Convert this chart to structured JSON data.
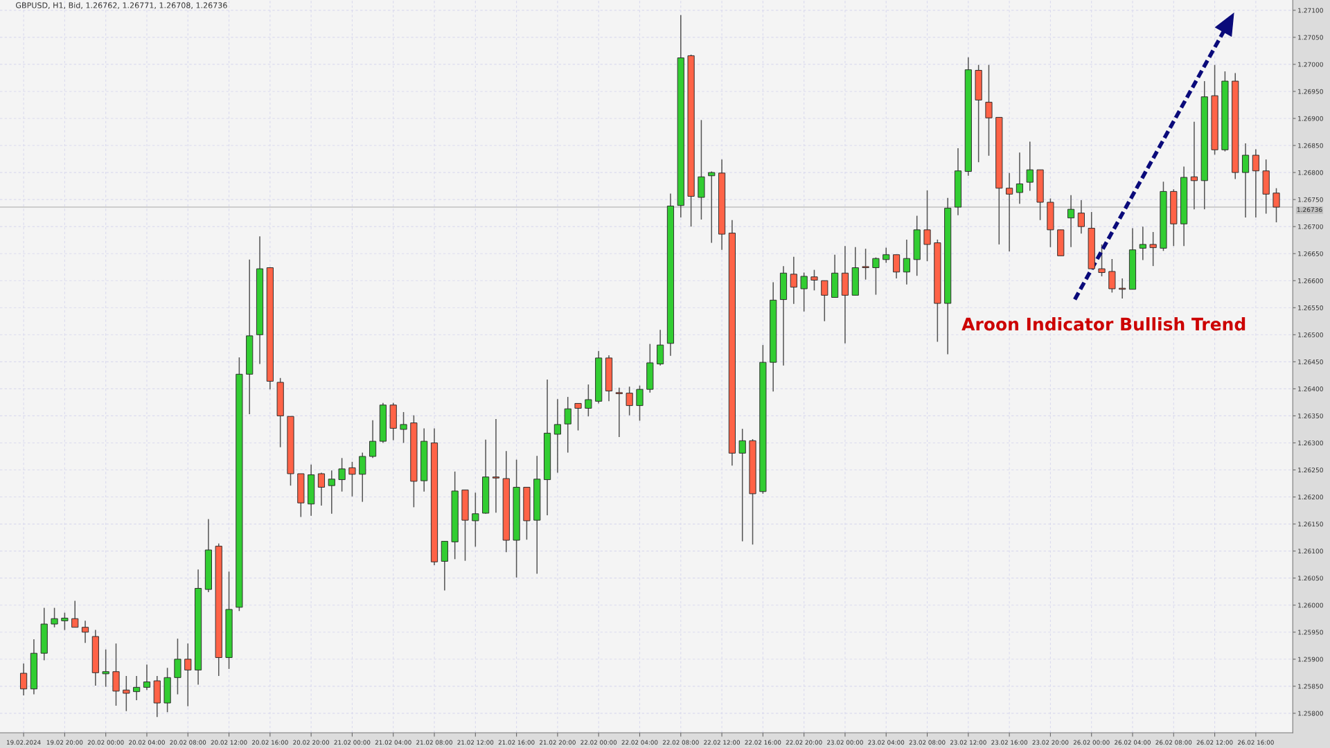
{
  "chart_data": {
    "type": "candlestick",
    "title": "GBPUSD, H1, Bid, 1.26762, 1.26771, 1.26708, 1.26736",
    "categories": [
      "19.02.2024",
      null,
      null,
      null,
      "19.02 20:00",
      null,
      null,
      null,
      "20.02 00:00",
      null,
      null,
      null,
      "20.02 04:00",
      null,
      null,
      null,
      "20.02 08:00",
      null,
      null,
      null,
      "20.02 12:00",
      null,
      null,
      null,
      "20.02 16:00",
      null,
      null,
      null,
      "20.02 20:00",
      null,
      null,
      null,
      "21.02 00:00",
      null,
      null,
      null,
      "21.02 04:00",
      null,
      null,
      null,
      "21.02 08:00",
      null,
      null,
      null,
      "21.02 12:00",
      null,
      null,
      null,
      "21.02 16:00",
      null,
      null,
      null,
      "21.02 20:00",
      null,
      null,
      null,
      "22.02 00:00",
      null,
      null,
      null,
      "22.02 04:00",
      null,
      null,
      null,
      "22.02 08:00",
      null,
      null,
      null,
      "22.02 12:00",
      null,
      null,
      null,
      "22.02 16:00",
      null,
      null,
      null,
      "22.02 20:00",
      null,
      null,
      null,
      "23.02 00:00",
      null,
      null,
      null,
      "23.02 04:00",
      null,
      null,
      null,
      "23.02 08:00",
      null,
      null,
      null,
      "23.02 12:00",
      null,
      null,
      null,
      "23.02 16:00",
      null,
      null,
      null,
      "23.02 20:00",
      null,
      null,
      null,
      "26.02 00:00",
      null,
      null,
      null,
      "26.02 04:00",
      null,
      null,
      null,
      "26.02 08:00",
      null,
      null,
      null,
      "26.02 12:00",
      null,
      null,
      null,
      "26.02 16:00",
      null,
      null
    ],
    "ohlc": [
      [
        1.25874,
        1.25892,
        1.25833,
        1.25845
      ],
      [
        1.25845,
        1.25937,
        1.25835,
        1.25911
      ],
      [
        1.25911,
        1.25995,
        1.25898,
        1.25965
      ],
      [
        1.25965,
        1.25995,
        1.25959,
        1.25975
      ],
      [
        1.25971,
        1.25986,
        1.25954,
        1.25976
      ],
      [
        1.25975,
        1.26008,
        1.25959,
        1.25959
      ],
      [
        1.25959,
        1.25971,
        1.2593,
        1.2595
      ],
      [
        1.25942,
        1.25954,
        1.25851,
        1.25875
      ],
      [
        1.25873,
        1.25918,
        1.25849,
        1.25877
      ],
      [
        1.25877,
        1.25929,
        1.25814,
        1.25841
      ],
      [
        1.25843,
        1.25869,
        1.25804,
        1.25837
      ],
      [
        1.2584,
        1.25869,
        1.25824,
        1.25848
      ],
      [
        1.25848,
        1.2589,
        1.25843,
        1.25858
      ],
      [
        1.2586,
        1.25869,
        1.25793,
        1.25819
      ],
      [
        1.25819,
        1.25884,
        1.25802,
        1.25866
      ],
      [
        1.25866,
        1.25938,
        1.25835,
        1.259
      ],
      [
        1.259,
        1.25929,
        1.25813,
        1.2588
      ],
      [
        1.2588,
        1.26066,
        1.25853,
        1.26031
      ],
      [
        1.26029,
        1.26159,
        1.26024,
        1.26102
      ],
      [
        1.26109,
        1.26114,
        1.25869,
        1.25903
      ],
      [
        1.25903,
        1.26062,
        1.25882,
        1.25992
      ],
      [
        1.25996,
        1.26458,
        1.25989,
        1.26427
      ],
      [
        1.26427,
        1.26639,
        1.26353,
        1.26498
      ],
      [
        1.265,
        1.26682,
        1.26446,
        1.26622
      ],
      [
        1.26624,
        1.26625,
        1.26399,
        1.26414
      ],
      [
        1.26412,
        1.2642,
        1.26292,
        1.2635
      ],
      [
        1.26349,
        1.26349,
        1.26221,
        1.26243
      ],
      [
        1.26243,
        1.26243,
        1.26163,
        1.26189
      ],
      [
        1.26187,
        1.2626,
        1.26165,
        1.26241
      ],
      [
        1.26243,
        1.26245,
        1.26184,
        1.26218
      ],
      [
        1.26221,
        1.26249,
        1.26169,
        1.26233
      ],
      [
        1.26232,
        1.26272,
        1.2621,
        1.26252
      ],
      [
        1.26254,
        1.26265,
        1.26201,
        1.26242
      ],
      [
        1.26242,
        1.26282,
        1.26191,
        1.26275
      ],
      [
        1.26275,
        1.26342,
        1.26272,
        1.26303
      ],
      [
        1.26303,
        1.26374,
        1.263,
        1.2637
      ],
      [
        1.2637,
        1.26374,
        1.26305,
        1.26327
      ],
      [
        1.26325,
        1.26357,
        1.263,
        1.26334
      ],
      [
        1.26337,
        1.26351,
        1.26181,
        1.26229
      ],
      [
        1.2623,
        1.26327,
        1.2621,
        1.26303
      ],
      [
        1.263,
        1.26327,
        1.26074,
        1.2608
      ],
      [
        1.26081,
        1.26118,
        1.26027,
        1.26118
      ],
      [
        1.26117,
        1.26247,
        1.26085,
        1.26211
      ],
      [
        1.26213,
        1.26213,
        1.26082,
        1.26157
      ],
      [
        1.26156,
        1.26208,
        1.26108,
        1.26169
      ],
      [
        1.2617,
        1.26306,
        1.26169,
        1.26237
      ],
      [
        1.26237,
        1.26344,
        1.26171,
        1.26235
      ],
      [
        1.26234,
        1.26285,
        1.26098,
        1.2612
      ],
      [
        1.2612,
        1.26269,
        1.26051,
        1.26218
      ],
      [
        1.26218,
        1.26218,
        1.26121,
        1.26156
      ],
      [
        1.26157,
        1.26276,
        1.26058,
        1.26233
      ],
      [
        1.26232,
        1.26417,
        1.26166,
        1.26318
      ],
      [
        1.26316,
        1.26381,
        1.26245,
        1.26334
      ],
      [
        1.26335,
        1.26385,
        1.26282,
        1.26363
      ],
      [
        1.26373,
        1.26373,
        1.26323,
        1.26364
      ],
      [
        1.26364,
        1.26408,
        1.26349,
        1.2638
      ],
      [
        1.26377,
        1.2647,
        1.26373,
        1.26457
      ],
      [
        1.26457,
        1.26462,
        1.26377,
        1.26396
      ],
      [
        1.26393,
        1.26402,
        1.26311,
        1.26391
      ],
      [
        1.26392,
        1.26404,
        1.26351,
        1.26369
      ],
      [
        1.26369,
        1.26406,
        1.26341,
        1.26399
      ],
      [
        1.26399,
        1.26483,
        1.26393,
        1.26448
      ],
      [
        1.26446,
        1.26509,
        1.26443,
        1.26481
      ],
      [
        1.26484,
        1.26761,
        1.26461,
        1.26738
      ],
      [
        1.26739,
        1.27091,
        1.26717,
        1.27012
      ],
      [
        1.27016,
        1.27018,
        1.267,
        1.26756
      ],
      [
        1.26754,
        1.26897,
        1.26713,
        1.26792
      ],
      [
        1.26794,
        1.26802,
        1.2667,
        1.268
      ],
      [
        1.26799,
        1.26824,
        1.26657,
        1.26686
      ],
      [
        1.26688,
        1.26712,
        1.26258,
        1.26281
      ],
      [
        1.26281,
        1.26326,
        1.26118,
        1.26304
      ],
      [
        1.26304,
        1.26307,
        1.26112,
        1.26206
      ],
      [
        1.2621,
        1.26481,
        1.26206,
        1.26449
      ],
      [
        1.26449,
        1.26597,
        1.26395,
        1.26564
      ],
      [
        1.26565,
        1.26627,
        1.26443,
        1.26614
      ],
      [
        1.26612,
        1.26644,
        1.26557,
        1.26588
      ],
      [
        1.26585,
        1.26615,
        1.26543,
        1.26608
      ],
      [
        1.26607,
        1.2662,
        1.26582,
        1.26601
      ],
      [
        1.266,
        1.266,
        1.26525,
        1.26573
      ],
      [
        1.26569,
        1.26648,
        1.26569,
        1.26614
      ],
      [
        1.26614,
        1.26664,
        1.26484,
        1.26573
      ],
      [
        1.26573,
        1.26662,
        1.26573,
        1.26624
      ],
      [
        1.26626,
        1.26659,
        1.26602,
        1.26624
      ],
      [
        1.26624,
        1.26643,
        1.26574,
        1.26641
      ],
      [
        1.26639,
        1.26661,
        1.26633,
        1.26648
      ],
      [
        1.26648,
        1.26648,
        1.26604,
        1.26616
      ],
      [
        1.26616,
        1.26676,
        1.26593,
        1.26641
      ],
      [
        1.26639,
        1.2672,
        1.26609,
        1.26694
      ],
      [
        1.26694,
        1.26767,
        1.26636,
        1.26667
      ],
      [
        1.2667,
        1.26676,
        1.26487,
        1.26558
      ],
      [
        1.26558,
        1.26753,
        1.26464,
        1.26734
      ],
      [
        1.26736,
        1.26845,
        1.26721,
        1.26803
      ],
      [
        1.26802,
        1.27013,
        1.26794,
        1.2699
      ],
      [
        1.26989,
        1.26999,
        1.26819,
        1.26934
      ],
      [
        1.2693,
        1.26999,
        1.26831,
        1.26901
      ],
      [
        1.26902,
        1.26902,
        1.26667,
        1.26771
      ],
      [
        1.26771,
        1.26799,
        1.26654,
        1.2676
      ],
      [
        1.26763,
        1.26837,
        1.26742,
        1.26779
      ],
      [
        1.26782,
        1.26857,
        1.26766,
        1.26805
      ],
      [
        1.26805,
        1.26805,
        1.26712,
        1.26745
      ],
      [
        1.26745,
        1.26752,
        1.26662,
        1.26694
      ],
      [
        1.26694,
        1.26694,
        1.26646,
        1.26646
      ],
      [
        1.26716,
        1.26758,
        1.26662,
        1.26732
      ],
      [
        1.26725,
        1.26749,
        1.26687,
        1.267
      ],
      [
        1.26697,
        1.26727,
        1.26622,
        1.26622
      ],
      [
        1.26622,
        1.26667,
        1.26608,
        1.26615
      ],
      [
        1.26617,
        1.2664,
        1.26578,
        1.26585
      ],
      [
        1.26586,
        1.26604,
        1.26567,
        1.26584
      ],
      [
        1.26584,
        1.26697,
        1.26584,
        1.26657
      ],
      [
        1.2666,
        1.267,
        1.26638,
        1.26667
      ],
      [
        1.26667,
        1.2669,
        1.26627,
        1.26661
      ],
      [
        1.2666,
        1.26783,
        1.26655,
        1.26765
      ],
      [
        1.26765,
        1.26769,
        1.26664,
        1.26705
      ],
      [
        1.26705,
        1.26811,
        1.26664,
        1.26791
      ],
      [
        1.26792,
        1.26894,
        1.26732,
        1.26785
      ],
      [
        1.26785,
        1.26969,
        1.26732,
        1.2694
      ],
      [
        1.26942,
        1.26999,
        1.26833,
        1.26842
      ],
      [
        1.26842,
        1.26987,
        1.26839,
        1.26969
      ],
      [
        1.26969,
        1.26984,
        1.26788,
        1.268
      ],
      [
        1.268,
        1.26854,
        1.26717,
        1.26832
      ],
      [
        1.26832,
        1.26843,
        1.26717,
        1.26803
      ],
      [
        1.26803,
        1.26824,
        1.26724,
        1.2676
      ],
      [
        1.26762,
        1.26771,
        1.26708,
        1.26736
      ]
    ],
    "colors": [
      "#ff6347",
      "#32cd32",
      "#32cd32",
      "#32cd32",
      "#32cd32",
      "#ff6347",
      "#ff6347",
      "#ff6347",
      "#32cd32",
      "#ff6347",
      "#ff6347",
      "#32cd32",
      "#32cd32",
      "#ff6347",
      "#32cd32",
      "#32cd32",
      "#ff6347",
      "#32cd32",
      "#32cd32",
      "#ff6347",
      "#32cd32",
      "#32cd32",
      "#32cd32",
      "#32cd32",
      "#ff6347",
      "#ff6347",
      "#ff6347",
      "#ff6347",
      "#32cd32",
      "#ff6347",
      "#32cd32",
      "#32cd32",
      "#ff6347",
      "#32cd32",
      "#32cd32",
      "#32cd32",
      "#ff6347",
      "#32cd32",
      "#ff6347",
      "#32cd32",
      "#ff6347",
      "#32cd32",
      "#32cd32",
      "#ff6347",
      "#32cd32",
      "#32cd32",
      "#ff6347",
      "#ff6347",
      "#32cd32",
      "#ff6347",
      "#32cd32",
      "#32cd32",
      "#32cd32",
      "#32cd32",
      "#ff6347",
      "#32cd32",
      "#32cd32",
      "#ff6347",
      "#ff6347",
      "#ff6347",
      "#32cd32",
      "#32cd32",
      "#32cd32",
      "#32cd32",
      "#32cd32",
      "#ff6347",
      "#32cd32",
      "#32cd32",
      "#ff6347",
      "#ff6347",
      "#32cd32",
      "#ff6347",
      "#32cd32",
      "#32cd32",
      "#32cd32",
      "#ff6347",
      "#32cd32",
      "#ff6347",
      "#ff6347",
      "#32cd32",
      "#ff6347",
      "#32cd32",
      "#ff6347",
      "#32cd32",
      "#32cd32",
      "#ff6347",
      "#32cd32",
      "#32cd32",
      "#ff6347",
      "#ff6347",
      "#32cd32",
      "#32cd32",
      "#32cd32",
      "#ff6347",
      "#ff6347",
      "#ff6347",
      "#ff6347",
      "#32cd32",
      "#32cd32",
      "#ff6347",
      "#ff6347",
      "#ff6347",
      "#32cd32",
      "#ff6347",
      "#ff6347",
      "#ff6347",
      "#ff6347",
      "#ff6347",
      "#32cd32",
      "#32cd32",
      "#ff6347",
      "#32cd32",
      "#ff6347",
      "#32cd32",
      "#ff6347",
      "#32cd32",
      "#ff6347",
      "#32cd32",
      "#ff6347",
      "#32cd32",
      "#ff6347",
      "#ff6347",
      "#ff6347"
    ],
    "ylim": [
      1.25764,
      1.27119
    ],
    "yticks": [
      {
        "value": 1.258,
        "label": "1.25800"
      },
      {
        "value": 1.2585,
        "label": "1.25850"
      },
      {
        "value": 1.259,
        "label": "1.25900"
      },
      {
        "value": 1.2595,
        "label": "1.25950"
      },
      {
        "value": 1.26,
        "label": "1.26000"
      },
      {
        "value": 1.2605,
        "label": "1.26050"
      },
      {
        "value": 1.261,
        "label": "1.26100"
      },
      {
        "value": 1.2615,
        "label": "1.26150"
      },
      {
        "value": 1.262,
        "label": "1.26200"
      },
      {
        "value": 1.2625,
        "label": "1.26250"
      },
      {
        "value": 1.263,
        "label": "1.26300"
      },
      {
        "value": 1.2635,
        "label": "1.26350"
      },
      {
        "value": 1.264,
        "label": "1.26400"
      },
      {
        "value": 1.2645,
        "label": "1.26450"
      },
      {
        "value": 1.265,
        "label": "1.26500"
      },
      {
        "value": 1.2655,
        "label": "1.26550"
      },
      {
        "value": 1.266,
        "label": "1.26600"
      },
      {
        "value": 1.2665,
        "label": "1.26650"
      },
      {
        "value": 1.267,
        "label": "1.26700"
      },
      {
        "value": 1.2675,
        "label": "1.26750"
      },
      {
        "value": 1.268,
        "label": "1.26800"
      },
      {
        "value": 1.2685,
        "label": "1.26850"
      },
      {
        "value": 1.269,
        "label": "1.26900"
      },
      {
        "value": 1.2695,
        "label": "1.26950"
      },
      {
        "value": 1.27,
        "label": "1.27000"
      },
      {
        "value": 1.2705,
        "label": "1.27050"
      },
      {
        "value": 1.271,
        "label": "1.27100"
      }
    ],
    "ref_lines": [
      {
        "axis": "y",
        "value": 1.26736,
        "label": "1.26736",
        "color": "#c0c0c0"
      }
    ],
    "annotations": [
      "Aroon Indicator Bullish Trend"
    ],
    "grid": true
  }
}
